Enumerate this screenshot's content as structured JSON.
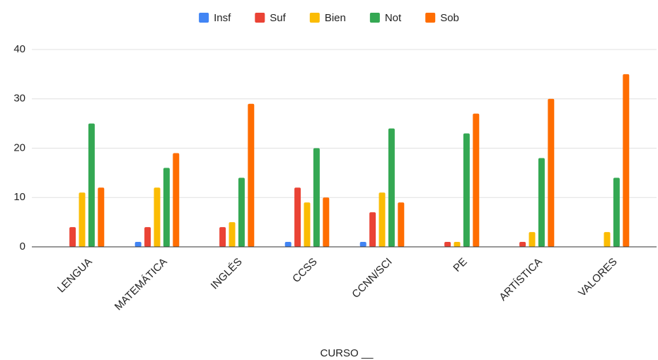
{
  "chart_data": {
    "type": "bar",
    "x_label": "CURSO __",
    "categories": [
      "LENGUA",
      "MATEMÁTICA",
      "INGLÉS",
      "CCSS",
      "CCNN/SCI",
      "PE",
      "ARTÍSTICA",
      "VALORES"
    ],
    "series": [
      {
        "name": "Insf",
        "color": "#4285f4",
        "values": [
          0,
          1,
          0,
          1,
          1,
          0,
          0,
          0
        ]
      },
      {
        "name": "Suf",
        "color": "#ea4335",
        "values": [
          4,
          4,
          4,
          12,
          7,
          1,
          1,
          0
        ]
      },
      {
        "name": "Bien",
        "color": "#fbbc04",
        "values": [
          11,
          12,
          5,
          9,
          11,
          1,
          3,
          3
        ]
      },
      {
        "name": "Not",
        "color": "#34a853",
        "values": [
          25,
          16,
          14,
          20,
          24,
          23,
          18,
          14
        ]
      },
      {
        "name": "Sob",
        "color": "#ff6d01",
        "values": [
          12,
          19,
          29,
          10,
          9,
          27,
          30,
          35
        ]
      }
    ],
    "ylim": [
      0,
      40
    ],
    "yticks": [
      0,
      10,
      20,
      30,
      40
    ],
    "grid": true,
    "legend": "top"
  }
}
